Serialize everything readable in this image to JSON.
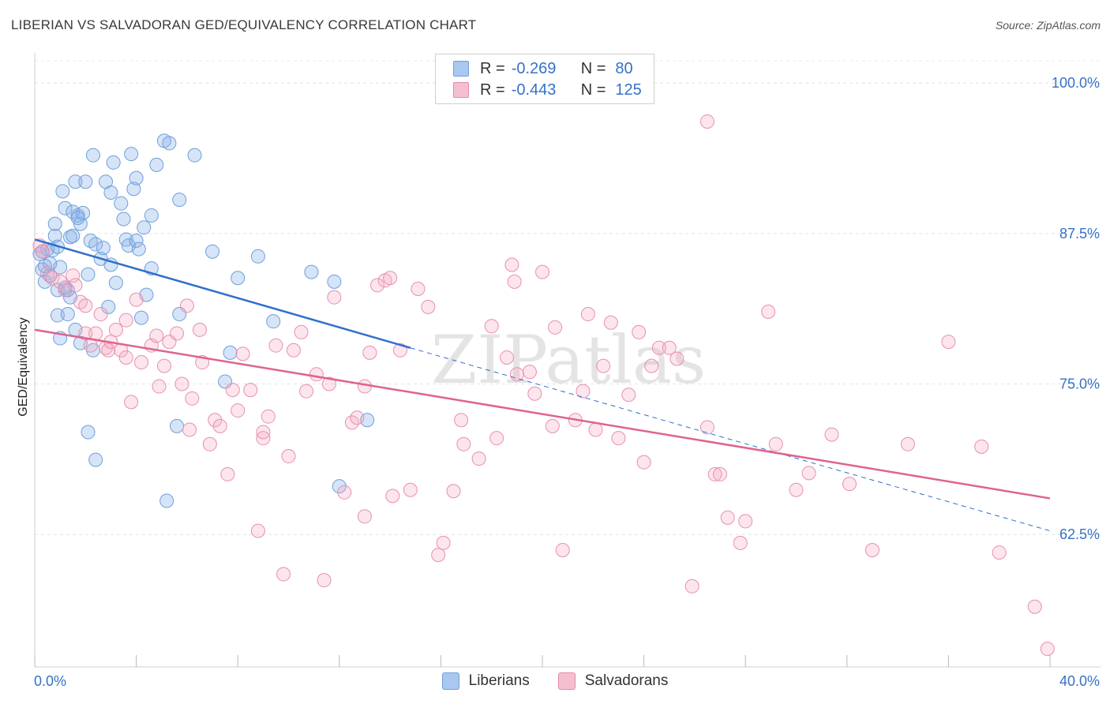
{
  "title": "LIBERIAN VS SALVADORAN GED/EQUIVALENCY CORRELATION CHART",
  "source": "Source: ZipAtlas.com",
  "watermark": "ZIPatlas",
  "legend": {
    "rows": [
      {
        "r_label": "R =",
        "r_value": "-0.269",
        "n_label": "N =",
        "n_value": "80",
        "color": "#a9c8ef",
        "border": "#6f9fdc"
      },
      {
        "r_label": "R =",
        "r_value": "-0.443",
        "n_label": "N =",
        "n_value": "125",
        "color": "#f6bfd0",
        "border": "#e88aa8"
      }
    ]
  },
  "bottom_legend": [
    "Liberians",
    "Salvadorans"
  ],
  "colors": {
    "liberian_fill": "rgba(137,178,232,0.35)",
    "liberian_stroke": "#6f9fdc",
    "liberian_line": "#2f6fcd",
    "salvadoran_fill": "rgba(245,170,195,0.30)",
    "salvadoran_stroke": "#e790ad",
    "salvadoran_line": "#e0628f",
    "axis_text": "#3571c8"
  },
  "chart_data": {
    "type": "scatter",
    "title": "LIBERIAN VS SALVADORAN GED/EQUIVALENCY CORRELATION CHART",
    "xlabel": "",
    "ylabel": "GED/Equivalency",
    "xlim": [
      0,
      40
    ],
    "ylim": [
      51.5,
      102.5
    ],
    "x_tick_labels": [
      "0.0%",
      "40.0%"
    ],
    "y_ticks": [
      62.5,
      75.0,
      87.5,
      100.0
    ],
    "y_tick_labels": [
      "62.5%",
      "75.0%",
      "87.5%",
      "100.0%"
    ],
    "grid": true,
    "series": [
      {
        "name": "Liberians",
        "points": [
          [
            0.2,
            85.8
          ],
          [
            0.3,
            84.5
          ],
          [
            0.4,
            83.5
          ],
          [
            0.5,
            86.2
          ],
          [
            0.6,
            84.0
          ],
          [
            0.7,
            86.1
          ],
          [
            0.8,
            87.3
          ],
          [
            0.8,
            88.3
          ],
          [
            0.9,
            80.7
          ],
          [
            0.9,
            82.8
          ],
          [
            1.0,
            78.8
          ],
          [
            1.0,
            84.7
          ],
          [
            1.1,
            91.0
          ],
          [
            1.2,
            89.6
          ],
          [
            1.3,
            80.8
          ],
          [
            1.3,
            82.8
          ],
          [
            1.4,
            82.2
          ],
          [
            1.4,
            87.2
          ],
          [
            1.5,
            87.3
          ],
          [
            1.5,
            89.3
          ],
          [
            1.6,
            79.5
          ],
          [
            1.6,
            91.8
          ],
          [
            1.7,
            89.0
          ],
          [
            1.8,
            78.4
          ],
          [
            1.8,
            88.3
          ],
          [
            1.9,
            89.2
          ],
          [
            2.0,
            91.8
          ],
          [
            2.1,
            71.0
          ],
          [
            2.2,
            86.9
          ],
          [
            2.3,
            77.8
          ],
          [
            2.3,
            94.0
          ],
          [
            2.4,
            86.6
          ],
          [
            2.4,
            68.7
          ],
          [
            2.6,
            85.4
          ],
          [
            2.8,
            91.8
          ],
          [
            2.9,
            81.4
          ],
          [
            3.0,
            84.9
          ],
          [
            3.0,
            90.9
          ],
          [
            3.1,
            93.4
          ],
          [
            3.2,
            83.4
          ],
          [
            3.4,
            90.0
          ],
          [
            3.6,
            87.0
          ],
          [
            3.7,
            86.5
          ],
          [
            3.8,
            94.1
          ],
          [
            3.9,
            91.2
          ],
          [
            4.0,
            92.1
          ],
          [
            4.0,
            86.9
          ],
          [
            4.1,
            86.2
          ],
          [
            4.2,
            80.5
          ],
          [
            4.3,
            88.0
          ],
          [
            4.6,
            84.6
          ],
          [
            4.6,
            89.0
          ],
          [
            4.8,
            93.2
          ],
          [
            5.1,
            95.2
          ],
          [
            5.2,
            65.3
          ],
          [
            5.6,
            71.5
          ],
          [
            5.7,
            90.3
          ],
          [
            5.7,
            80.8
          ],
          [
            6.3,
            94.0
          ],
          [
            7.0,
            86.0
          ],
          [
            7.5,
            75.2
          ],
          [
            7.7,
            77.6
          ],
          [
            8.0,
            83.8
          ],
          [
            8.8,
            85.6
          ],
          [
            9.4,
            80.2
          ],
          [
            10.9,
            84.3
          ],
          [
            11.8,
            83.5
          ],
          [
            12.0,
            66.5
          ],
          [
            13.1,
            72.0
          ],
          [
            0.3,
            86.0
          ],
          [
            0.6,
            85.0
          ],
          [
            1.2,
            83.0
          ],
          [
            0.4,
            84.8
          ],
          [
            0.9,
            86.4
          ],
          [
            1.7,
            88.8
          ],
          [
            2.1,
            84.1
          ],
          [
            2.7,
            86.3
          ],
          [
            3.5,
            88.7
          ],
          [
            4.4,
            82.4
          ],
          [
            5.3,
            95.0
          ]
        ]
      },
      {
        "name": "Salvadorans",
        "points": [
          [
            0.2,
            86.5
          ],
          [
            0.3,
            86.0
          ],
          [
            0.5,
            84.2
          ],
          [
            0.7,
            83.8
          ],
          [
            1.0,
            83.5
          ],
          [
            1.2,
            82.8
          ],
          [
            1.5,
            84.0
          ],
          [
            1.6,
            83.2
          ],
          [
            1.8,
            81.8
          ],
          [
            2.0,
            81.5
          ],
          [
            2.0,
            79.2
          ],
          [
            2.2,
            78.2
          ],
          [
            2.4,
            79.2
          ],
          [
            2.6,
            80.8
          ],
          [
            2.8,
            78.0
          ],
          [
            2.9,
            77.8
          ],
          [
            3.0,
            78.5
          ],
          [
            3.2,
            79.5
          ],
          [
            3.4,
            77.8
          ],
          [
            3.6,
            77.2
          ],
          [
            3.8,
            73.5
          ],
          [
            4.0,
            82.0
          ],
          [
            4.2,
            76.8
          ],
          [
            4.6,
            78.2
          ],
          [
            4.8,
            79.0
          ],
          [
            5.1,
            76.5
          ],
          [
            5.3,
            78.5
          ],
          [
            5.6,
            79.2
          ],
          [
            5.8,
            75.0
          ],
          [
            6.0,
            81.5
          ],
          [
            6.2,
            73.8
          ],
          [
            6.5,
            79.5
          ],
          [
            6.6,
            76.8
          ],
          [
            6.9,
            70.0
          ],
          [
            7.1,
            72.0
          ],
          [
            7.3,
            71.5
          ],
          [
            7.6,
            67.5
          ],
          [
            7.8,
            74.5
          ],
          [
            8.2,
            77.5
          ],
          [
            8.5,
            74.5
          ],
          [
            8.8,
            62.8
          ],
          [
            9.0,
            70.5
          ],
          [
            9.2,
            72.3
          ],
          [
            9.5,
            78.2
          ],
          [
            9.8,
            59.2
          ],
          [
            10.0,
            69.0
          ],
          [
            10.2,
            77.8
          ],
          [
            10.5,
            79.3
          ],
          [
            10.7,
            74.4
          ],
          [
            11.1,
            75.8
          ],
          [
            11.4,
            58.7
          ],
          [
            11.6,
            75.0
          ],
          [
            11.8,
            82.2
          ],
          [
            12.2,
            66.0
          ],
          [
            12.5,
            71.8
          ],
          [
            12.7,
            72.2
          ],
          [
            13.0,
            64.0
          ],
          [
            13.2,
            77.6
          ],
          [
            13.5,
            83.2
          ],
          [
            13.8,
            83.6
          ],
          [
            14.1,
            65.7
          ],
          [
            14.4,
            77.8
          ],
          [
            14.8,
            66.2
          ],
          [
            15.1,
            82.9
          ],
          [
            15.5,
            81.4
          ],
          [
            15.9,
            60.8
          ],
          [
            16.1,
            61.8
          ],
          [
            16.5,
            66.1
          ],
          [
            16.8,
            72.0
          ],
          [
            16.9,
            70.0
          ],
          [
            17.5,
            68.8
          ],
          [
            18.0,
            79.8
          ],
          [
            18.2,
            70.5
          ],
          [
            18.6,
            77.2
          ],
          [
            18.8,
            84.9
          ],
          [
            18.9,
            83.5
          ],
          [
            19.5,
            76.0
          ],
          [
            19.7,
            74.2
          ],
          [
            20.0,
            84.3
          ],
          [
            20.4,
            71.5
          ],
          [
            20.5,
            79.7
          ],
          [
            20.8,
            61.2
          ],
          [
            21.3,
            72.0
          ],
          [
            21.6,
            74.4
          ],
          [
            21.8,
            80.8
          ],
          [
            22.1,
            71.2
          ],
          [
            22.4,
            76.5
          ],
          [
            22.7,
            80.1
          ],
          [
            23.0,
            70.5
          ],
          [
            23.8,
            79.3
          ],
          [
            24.0,
            68.5
          ],
          [
            24.3,
            76.5
          ],
          [
            24.6,
            78.0
          ],
          [
            25.0,
            78.0
          ],
          [
            25.3,
            77.1
          ],
          [
            25.9,
            58.2
          ],
          [
            26.5,
            71.4
          ],
          [
            26.8,
            67.5
          ],
          [
            27.0,
            67.5
          ],
          [
            27.3,
            63.9
          ],
          [
            27.8,
            61.8
          ],
          [
            28.0,
            63.6
          ],
          [
            28.9,
            81.0
          ],
          [
            29.2,
            70.0
          ],
          [
            30.0,
            66.2
          ],
          [
            30.5,
            67.6
          ],
          [
            31.4,
            70.8
          ],
          [
            32.1,
            66.7
          ],
          [
            33.0,
            61.2
          ],
          [
            34.4,
            70.0
          ],
          [
            36.0,
            78.5
          ],
          [
            37.3,
            69.8
          ],
          [
            38.0,
            61.0
          ],
          [
            39.4,
            56.5
          ],
          [
            39.9,
            53.0
          ],
          [
            26.5,
            96.8
          ],
          [
            19.0,
            75.8
          ],
          [
            23.4,
            74.1
          ],
          [
            13.0,
            74.8
          ],
          [
            14.0,
            83.8
          ],
          [
            3.6,
            80.3
          ],
          [
            4.9,
            74.8
          ],
          [
            6.1,
            71.2
          ],
          [
            8.0,
            72.8
          ],
          [
            9.0,
            71.0
          ]
        ]
      }
    ],
    "trend_lines": [
      {
        "series": "Liberians",
        "x": [
          0,
          14.8
        ],
        "y": [
          87.0,
          78.0
        ],
        "dashed_extension_to_x": 40,
        "dashed_extension_y": 62.8
      },
      {
        "series": "Salvadorans",
        "x": [
          0,
          40
        ],
        "y": [
          79.5,
          65.5
        ]
      }
    ]
  }
}
